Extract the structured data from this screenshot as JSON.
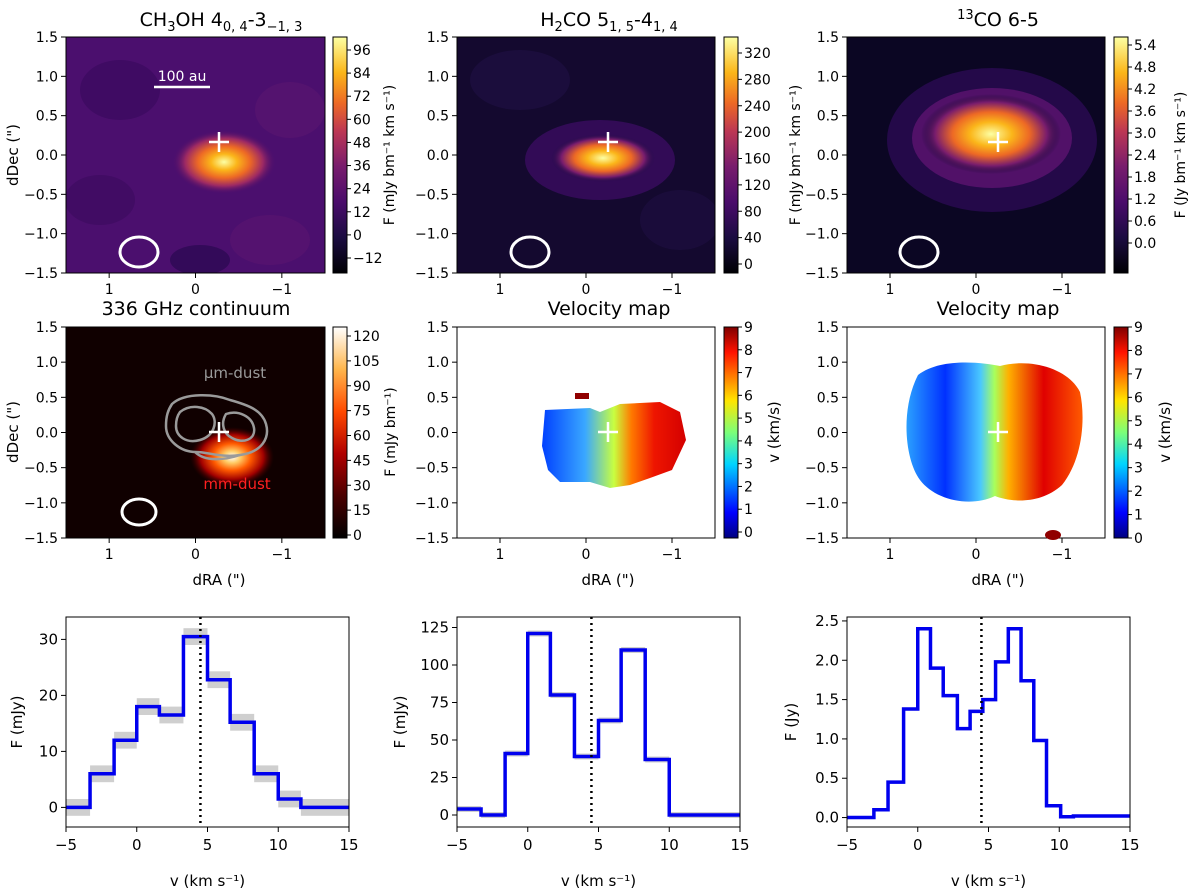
{
  "panels": {
    "ch3oh": {
      "title_main": "CH",
      "title_sub3": "3",
      "title_rest": "OH 4",
      "title_sub1": "0, 4",
      "title_mid": "-3",
      "title_sub2": "−1, 3",
      "ylabel": "dDec (\")",
      "cbar_label": "F (mJy bm⁻¹ km s⁻¹)",
      "cbar_ticks": [
        "96",
        "84",
        "72",
        "60",
        "48",
        "36",
        "24",
        "12",
        "0",
        "−12"
      ],
      "scale_bar": "100 au"
    },
    "h2co": {
      "title_a": "H",
      "title_sub_a": "2",
      "title_b": "CO 5",
      "title_sub_b": "1, 5",
      "title_c": "-4",
      "title_sub_c": "1, 4",
      "cbar_label": "F (mJy bm⁻¹ km s⁻¹)",
      "cbar_ticks": [
        "320",
        "280",
        "240",
        "200",
        "160",
        "120",
        "80",
        "40",
        "0"
      ]
    },
    "co13": {
      "title_sup": "13",
      "title_rest": "CO 6-5",
      "cbar_label": "F (Jy bm⁻¹ km s⁻¹)",
      "cbar_ticks": [
        "5.4",
        "4.8",
        "4.2",
        "3.6",
        "3.0",
        "2.4",
        "1.8",
        "1.2",
        "0.6",
        "0.0"
      ]
    },
    "continuum": {
      "title": "336 GHz continuum",
      "ylabel": "dDec (\")",
      "xlabel": "dRA (\")",
      "cbar_label": "F (mJy bm⁻¹)",
      "cbar_ticks": [
        "120",
        "105",
        "90",
        "75",
        "60",
        "45",
        "30",
        "15",
        "0"
      ],
      "label_um": "μm-dust",
      "label_mm": "mm-dust"
    },
    "vel1": {
      "title": "Velocity map",
      "xlabel": "dRA (\")",
      "cbar_label": "v (km/s)",
      "cbar_ticks": [
        "9",
        "8",
        "7",
        "6",
        "5",
        "4",
        "3",
        "2",
        "1",
        "0"
      ]
    },
    "vel2": {
      "title": "Velocity map",
      "xlabel": "dRA (\")",
      "cbar_label": "v (km/s)",
      "cbar_ticks": [
        "9",
        "8",
        "7",
        "6",
        "5",
        "4",
        "3",
        "2",
        "1",
        "0"
      ]
    }
  },
  "map_axes": {
    "y_ticks": [
      "1.5",
      "1.0",
      "0.5",
      "0.0",
      "−0.5",
      "−1.0",
      "−1.5"
    ],
    "x_ticks": [
      "1",
      "0",
      "−1"
    ]
  },
  "chart_data": [
    {
      "type": "line",
      "step": true,
      "title": "",
      "xlabel": "v (km s⁻¹)",
      "ylabel": "F (mJy)",
      "xlim": [
        -5,
        15
      ],
      "ylim": [
        -3.5,
        34
      ],
      "x_ticks": [
        "−5",
        "0",
        "5",
        "10",
        "15"
      ],
      "y_ticks": [
        "0",
        "10",
        "20",
        "30"
      ],
      "y_tick_values": [
        0,
        10,
        20,
        30
      ],
      "vline": 4.5,
      "bin_edges": [
        -5,
        -3.3,
        -1.6,
        0,
        1.6,
        3.3,
        5,
        6.6,
        8.3,
        10,
        11.6,
        15
      ],
      "values": [
        0,
        6,
        12,
        18,
        16.5,
        30.5,
        22.8,
        15.2,
        6,
        1.5,
        0
      ],
      "errors": [
        1.5,
        1.5,
        1.5,
        1.5,
        1.5,
        1.5,
        1.5,
        1.5,
        1.5,
        1.5,
        1.5
      ],
      "color": "#0000ee"
    },
    {
      "type": "line",
      "step": true,
      "title": "",
      "xlabel": "v (km s⁻¹)",
      "ylabel": "F (mJy)",
      "xlim": [
        -5,
        15
      ],
      "ylim": [
        -8,
        132
      ],
      "x_ticks": [
        "−5",
        "0",
        "5",
        "10",
        "15"
      ],
      "y_ticks": [
        "0",
        "25",
        "50",
        "75",
        "100",
        "125"
      ],
      "y_tick_values": [
        0,
        25,
        50,
        75,
        100,
        125
      ],
      "vline": 4.5,
      "bin_edges": [
        -5,
        -3.3,
        -1.6,
        0,
        1.6,
        3.3,
        5,
        6.6,
        8.3,
        10,
        15
      ],
      "values": [
        4,
        0,
        41,
        121,
        80,
        39,
        63,
        110,
        37,
        0
      ],
      "errors": [
        2,
        2,
        2,
        2,
        2,
        2,
        2,
        2,
        2,
        2
      ],
      "color": "#0000ee"
    },
    {
      "type": "line",
      "step": true,
      "title": "",
      "xlabel": "v (km s⁻¹)",
      "ylabel": "F (Jy)",
      "xlim": [
        -5,
        15
      ],
      "ylim": [
        -0.12,
        2.55
      ],
      "x_ticks": [
        "−5",
        "0",
        "5",
        "10",
        "15"
      ],
      "y_ticks": [
        "0.0",
        "0.5",
        "1.0",
        "1.5",
        "2.0",
        "2.5"
      ],
      "y_tick_values": [
        0,
        0.5,
        1.0,
        1.5,
        2.0,
        2.5
      ],
      "vline": 4.5,
      "bin_edges": [
        -5,
        -3.1,
        -2.1,
        -1.0,
        0,
        0.9,
        1.8,
        2.8,
        3.7,
        4.6,
        5.5,
        6.4,
        7.3,
        8.2,
        9.1,
        10.1,
        11.0,
        13.0,
        15
      ],
      "values": [
        0.0,
        0.1,
        0.45,
        1.38,
        2.4,
        1.9,
        1.55,
        1.13,
        1.35,
        1.5,
        1.98,
        2.4,
        1.74,
        0.98,
        0.15,
        0.01,
        0.02,
        0.02
      ],
      "errors": [
        0.02,
        0.02,
        0.02,
        0.02,
        0.02,
        0.02,
        0.02,
        0.02,
        0.02,
        0.02,
        0.02,
        0.02,
        0.02,
        0.02,
        0.02,
        0.02,
        0.02,
        0.02
      ],
      "color": "#0000ee"
    }
  ]
}
